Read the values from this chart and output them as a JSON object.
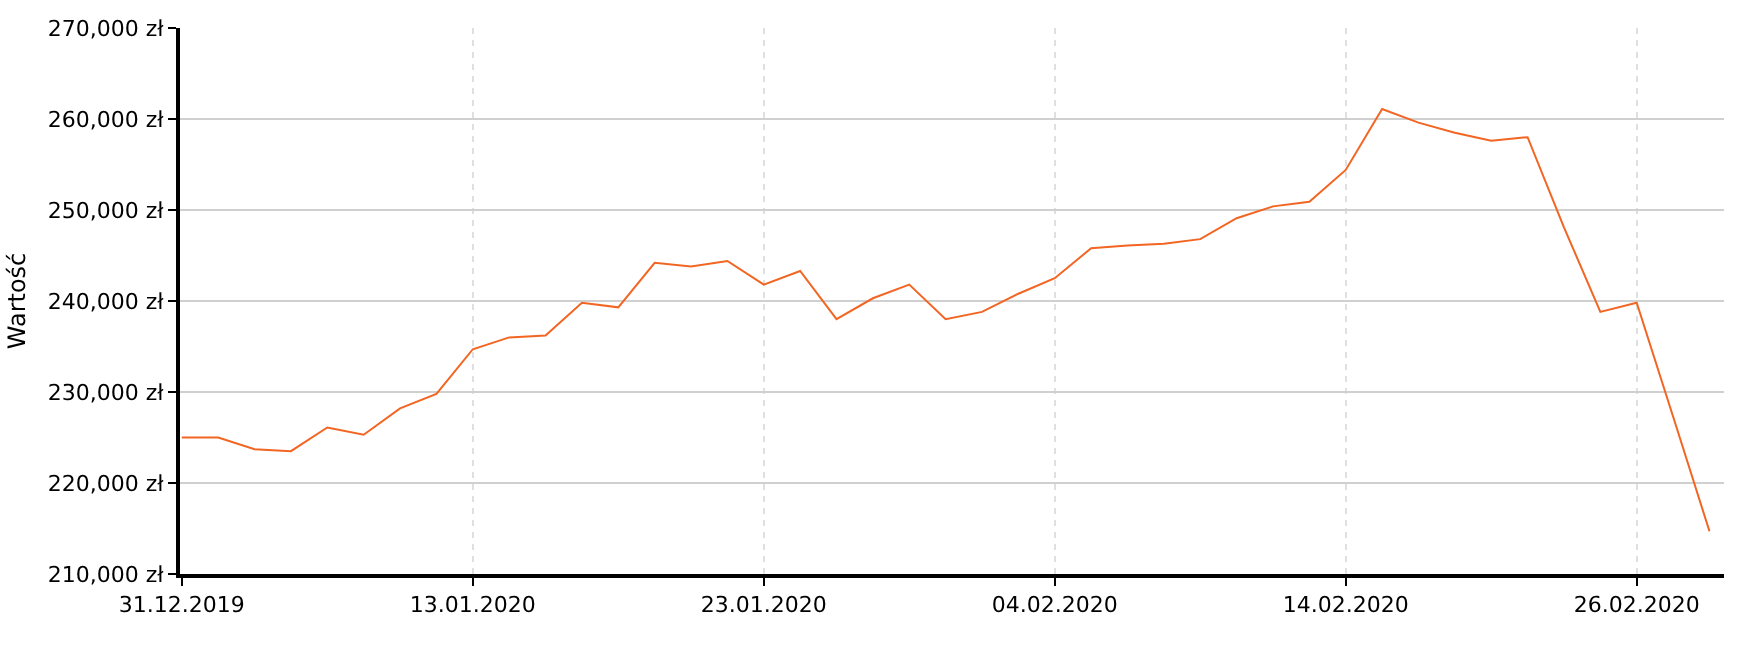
{
  "chart_data": {
    "type": "line",
    "ylabel": "Wartość",
    "categories": [
      "31.12.2019",
      null,
      null,
      null,
      null,
      null,
      null,
      null,
      "13.01.2020",
      null,
      null,
      null,
      null,
      null,
      null,
      null,
      "23.01.2020",
      null,
      null,
      null,
      null,
      null,
      null,
      null,
      "04.02.2020",
      null,
      null,
      null,
      null,
      null,
      null,
      null,
      "14.02.2020",
      null,
      null,
      null,
      null,
      null,
      null,
      null,
      "26.02.2020",
      null,
      null
    ],
    "series": [
      {
        "color": "#f26522",
        "values": [
          225000,
          225000,
          223700,
          223500,
          226100,
          225300,
          228200,
          229800,
          234700,
          236000,
          236200,
          239800,
          239300,
          244200,
          243800,
          244400,
          241800,
          243300,
          238000,
          240300,
          241800,
          238000,
          238800,
          240800,
          242500,
          245800,
          246100,
          246300,
          246800,
          249100,
          250400,
          250900,
          254400,
          261100,
          259600,
          258500,
          257600,
          258000,
          248100,
          238800,
          239800,
          227300,
          214700
        ]
      }
    ],
    "ylim": [
      210000,
      270000
    ],
    "yticks": [
      {
        "value": 210000,
        "label": "210,000 zł"
      },
      {
        "value": 220000,
        "label": "220,000 zł"
      },
      {
        "value": 230000,
        "label": "230,000 zł"
      },
      {
        "value": 240000,
        "label": "240,000 zł"
      },
      {
        "value": 250000,
        "label": "250,000 zł"
      },
      {
        "value": 260000,
        "label": "260,000 zł"
      },
      {
        "value": 270000,
        "label": "270,000 zł"
      }
    ],
    "grid": true,
    "marker": "none",
    "line_style": "solid"
  }
}
